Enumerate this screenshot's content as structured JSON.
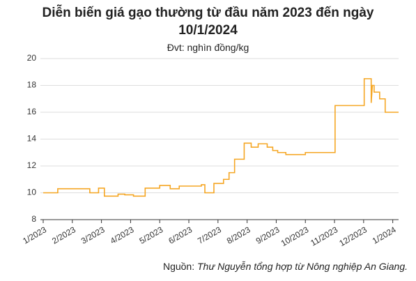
{
  "chart_data": {
    "type": "line",
    "title": "Diễn biến giá gạo thường từ đầu năm 2023 đến ngày 10/1/2024",
    "subtitle": "Đvt: nghìn đồng/kg",
    "source": {
      "label": "Nguồn:",
      "text": "Thư Nguyễn tổng hợp từ Nông nghiệp An Giang."
    },
    "x": [
      0,
      0.5,
      0.5,
      1.6,
      1.6,
      1.9,
      1.9,
      2.1,
      2.1,
      2.57,
      2.57,
      2.8,
      2.8,
      3.1,
      3.1,
      3.5,
      3.5,
      4.0,
      4.0,
      4.36,
      4.36,
      4.67,
      4.67,
      5.43,
      5.43,
      5.55,
      5.55,
      5.86,
      5.86,
      6.19,
      6.19,
      6.38,
      6.38,
      6.57,
      6.57,
      6.9,
      6.9,
      7.14,
      7.14,
      7.38,
      7.38,
      7.69,
      7.69,
      7.88,
      7.88,
      8.05,
      8.05,
      8.33,
      8.33,
      9.0,
      9.0,
      10.02,
      10.02,
      11.02,
      11.02,
      11.26,
      11.26,
      11.3,
      11.36,
      11.36,
      11.55,
      11.55,
      11.74,
      11.74,
      12.2
    ],
    "series": [
      {
        "color": "#f5a623",
        "values": [
          10,
          10,
          10.3,
          10.3,
          10,
          10,
          10.35,
          10.35,
          9.75,
          9.75,
          9.9,
          9.9,
          9.85,
          9.85,
          9.75,
          9.75,
          10.35,
          10.35,
          10.55,
          10.55,
          10.3,
          10.3,
          10.5,
          10.5,
          10.6,
          10.6,
          10,
          10,
          10.7,
          10.7,
          11,
          11,
          11.5,
          11.5,
          12.5,
          12.5,
          13.7,
          13.7,
          13.4,
          13.4,
          13.65,
          13.65,
          13.4,
          13.4,
          13.15,
          13.15,
          13.0,
          13.0,
          12.85,
          12.85,
          13.0,
          13.0,
          16.5,
          16.5,
          18.5,
          18.5,
          16.7,
          18.0,
          18.0,
          17.5,
          17.5,
          17.0,
          17.0,
          16.0,
          16.0
        ]
      }
    ],
    "xlim": [
      0,
      12.2
    ],
    "xticks": [
      {
        "value": 0,
        "label": "1/2023"
      },
      {
        "value": 1,
        "label": "2/2023"
      },
      {
        "value": 2,
        "label": "3/2023"
      },
      {
        "value": 3,
        "label": "4/2023"
      },
      {
        "value": 4,
        "label": "5/2023"
      },
      {
        "value": 5,
        "label": "6/2023"
      },
      {
        "value": 6,
        "label": "7/2023"
      },
      {
        "value": 7,
        "label": "8/2023"
      },
      {
        "value": 8,
        "label": "9/2023"
      },
      {
        "value": 9,
        "label": "10/2023"
      },
      {
        "value": 10,
        "label": "11/2023"
      },
      {
        "value": 11,
        "label": "12/2023"
      },
      {
        "value": 12,
        "label": "1/2024"
      }
    ],
    "ylim": [
      8,
      20
    ],
    "yticks": [
      8,
      10,
      12,
      14,
      16,
      18,
      20
    ],
    "grid": true
  }
}
